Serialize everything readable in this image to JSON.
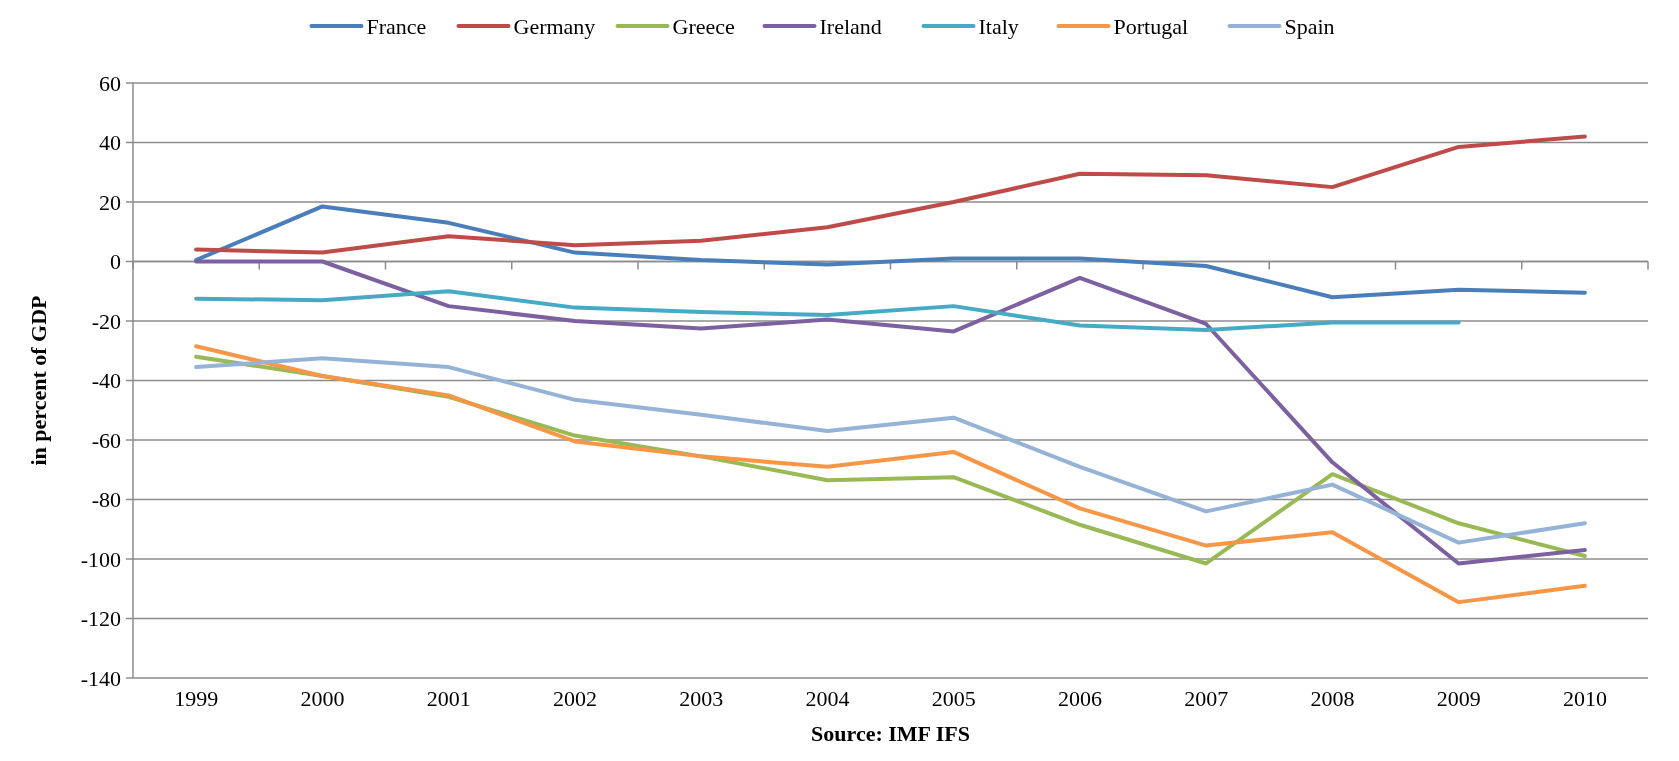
{
  "chart_data": {
    "type": "line",
    "ylabel": "in percent of GDP",
    "categories": [
      "1999",
      "2000",
      "2001",
      "2002",
      "2003",
      "2004",
      "2005",
      "2006",
      "2007",
      "2008",
      "2009",
      "2010"
    ],
    "series": [
      {
        "name": "France",
        "color": "#4a7ebb",
        "values": [
          0.5,
          18.5,
          13,
          3,
          0.5,
          -1,
          1,
          1,
          -1.5,
          -12,
          -9.5,
          -10.5
        ]
      },
      {
        "name": "Germany",
        "color": "#be4b48",
        "values": [
          4,
          3,
          8.5,
          5.5,
          7,
          11.5,
          20,
          29.5,
          29,
          25,
          38.5,
          42
        ]
      },
      {
        "name": "Greece",
        "color": "#98b954",
        "values": [
          -32,
          -38.5,
          -45.5,
          -58.5,
          -65.5,
          -73.5,
          -72.5,
          -88.5,
          -101.5,
          -71.5,
          -88,
          -99
        ]
      },
      {
        "name": "Ireland",
        "color": "#7d60a0",
        "values": [
          0,
          0,
          -15,
          -20,
          -22.5,
          -19.5,
          -23.5,
          -5.5,
          -21,
          -67.5,
          -101.5,
          -97
        ]
      },
      {
        "name": "Italy",
        "color": "#46aac5",
        "values": [
          -12.5,
          -13,
          -10,
          -15.5,
          -17,
          -18,
          -15,
          -21.5,
          -23,
          -20.5,
          -20.5,
          null
        ]
      },
      {
        "name": "Portugal",
        "color": "#f79646",
        "values": [
          -28.5,
          -38.5,
          -45,
          -60.5,
          -65.5,
          -69,
          -64,
          -83,
          -95.5,
          -91,
          -114.5,
          -109
        ]
      },
      {
        "name": "Spain",
        "color": "#95b3d7",
        "values": [
          -35.5,
          -32.5,
          -35.5,
          -46.5,
          -51.5,
          -57,
          -52.5,
          -69,
          -84,
          -75,
          -94.5,
          -88
        ]
      }
    ],
    "ylim": [
      -140,
      60
    ],
    "yticks": [
      -140,
      -120,
      -100,
      -80,
      -60,
      -40,
      -20,
      0,
      20,
      40,
      60
    ],
    "grid": "y",
    "legend": "top",
    "marker": "none",
    "line_style": "solid",
    "annotations": [
      "Source: IMF IFS"
    ]
  }
}
